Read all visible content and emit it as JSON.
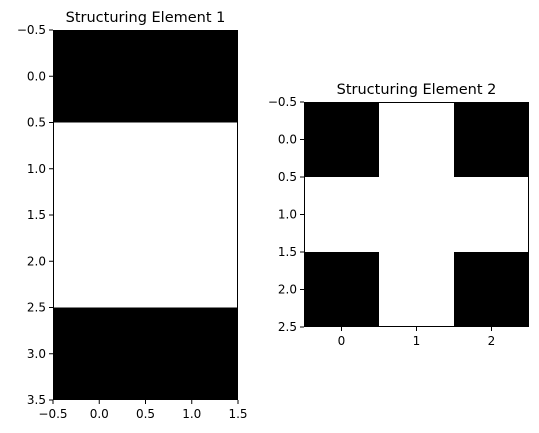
{
  "chart_data": [
    {
      "type": "heatmap",
      "title": "Structuring Element 1",
      "colormap": {
        "0": "#000000",
        "1": "#ffffff"
      },
      "matrix": [
        [
          0,
          0
        ],
        [
          1,
          1
        ],
        [
          1,
          1
        ],
        [
          0,
          0
        ]
      ],
      "xlim": [
        -0.5,
        1.5
      ],
      "ylim": [
        3.5,
        -0.5
      ],
      "xticks": [
        -0.5,
        0.0,
        0.5,
        1.0,
        1.5
      ],
      "xtick_labels": [
        "−0.5",
        "0.0",
        "0.5",
        "1.0",
        "1.5"
      ],
      "yticks": [
        -0.5,
        0.0,
        0.5,
        1.0,
        1.5,
        2.0,
        2.5,
        3.0,
        3.5
      ],
      "ytick_labels": [
        "−0.5",
        "0.0",
        "0.5",
        "1.0",
        "1.5",
        "2.0",
        "2.5",
        "3.0",
        "3.5"
      ],
      "grid": false
    },
    {
      "type": "heatmap",
      "title": "Structuring Element 2",
      "colormap": {
        "0": "#000000",
        "1": "#ffffff"
      },
      "matrix": [
        [
          0,
          1,
          0
        ],
        [
          1,
          1,
          1
        ],
        [
          0,
          1,
          0
        ]
      ],
      "xlim": [
        -0.5,
        2.5
      ],
      "ylim": [
        2.5,
        -0.5
      ],
      "xticks": [
        0,
        1,
        2
      ],
      "xtick_labels": [
        "0",
        "1",
        "2"
      ],
      "yticks": [
        -0.5,
        0.0,
        0.5,
        1.0,
        1.5,
        2.0,
        2.5
      ],
      "ytick_labels": [
        "−0.5",
        "0.0",
        "0.5",
        "1.0",
        "1.5",
        "2.0",
        "2.5"
      ],
      "grid": false
    }
  ]
}
